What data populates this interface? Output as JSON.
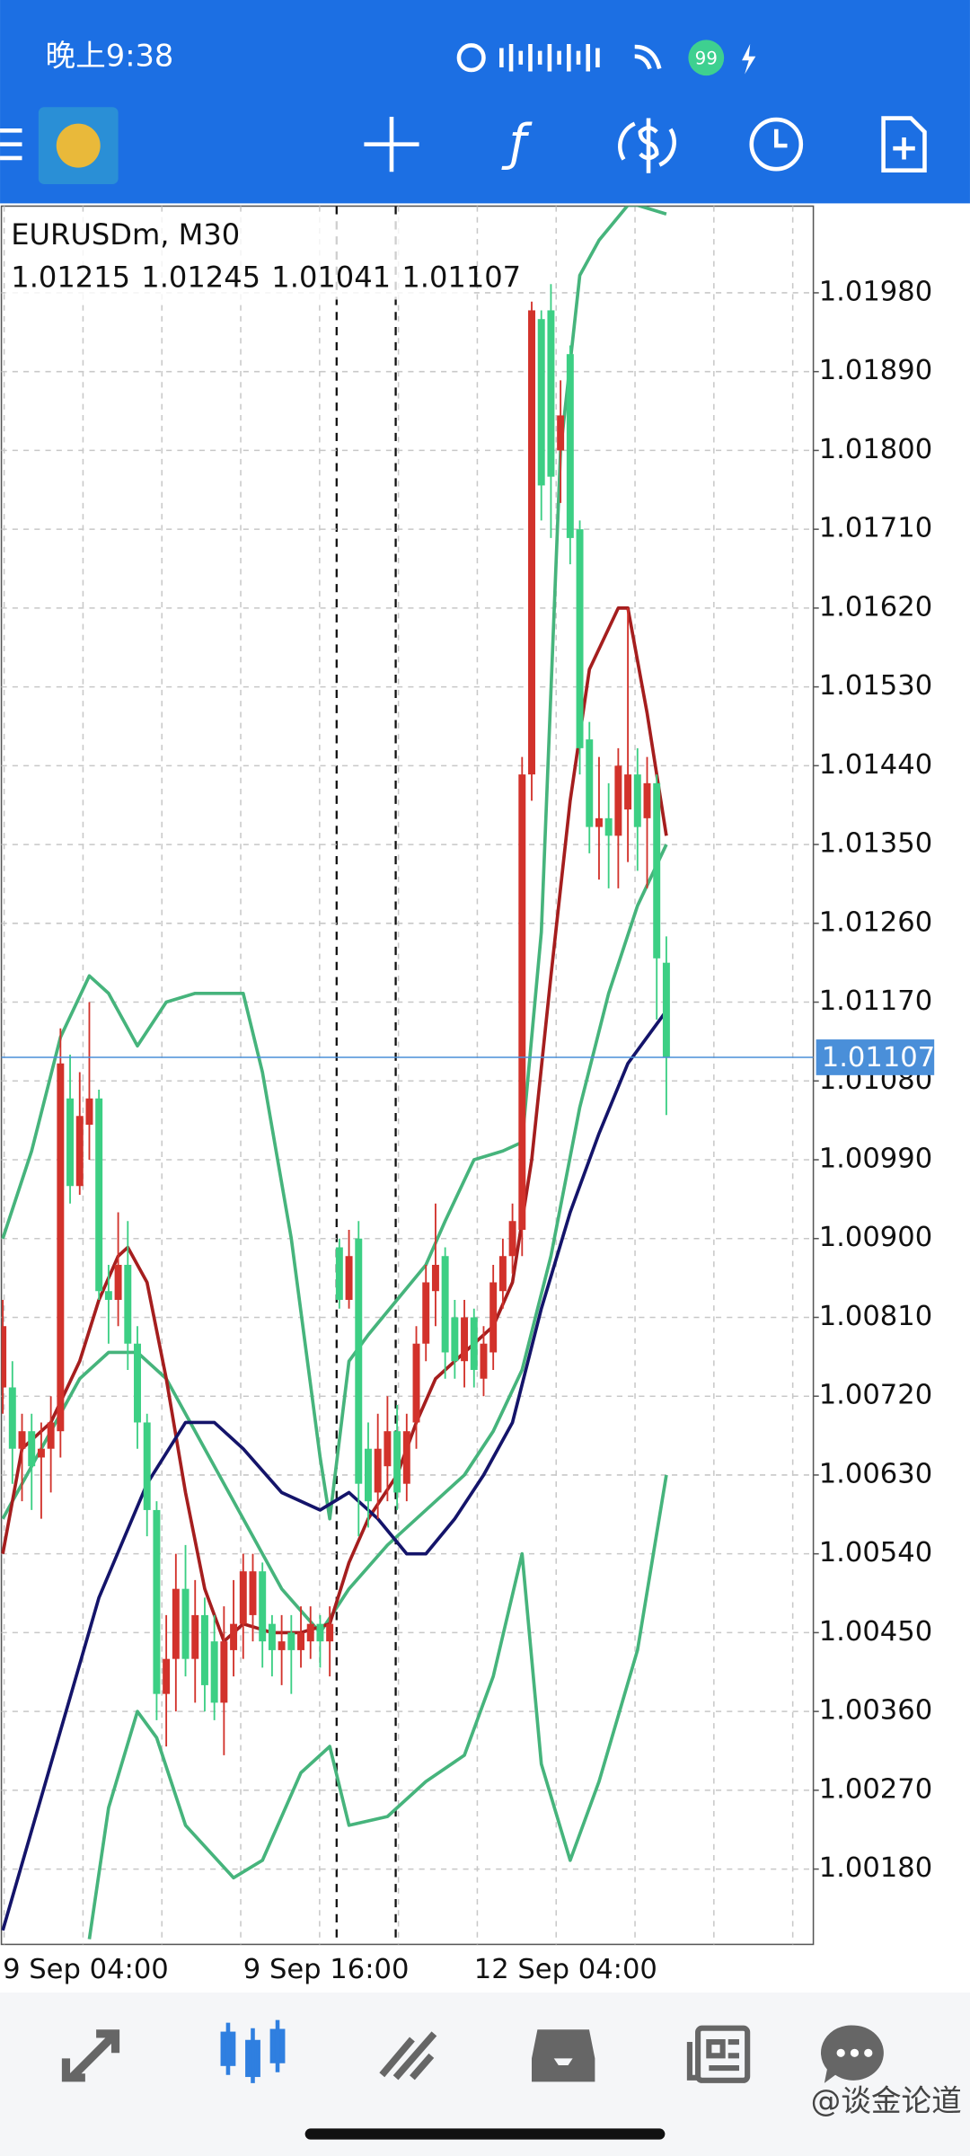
{
  "status_bar": {
    "time": "晚上9:38",
    "battery": "99"
  },
  "watermark": "@谈金论道",
  "chart_data": {
    "type": "candlestick",
    "symbol": "EURUSDm, M30",
    "categories": [
      "9 Sep 04:00",
      null,
      null,
      null,
      null,
      null,
      null,
      null,
      null,
      null,
      null,
      null,
      null,
      null,
      null,
      null,
      null,
      null,
      null,
      null,
      null,
      null,
      null,
      null,
      null,
      "9 Sep 16:00",
      null,
      null,
      null,
      null,
      null,
      null,
      null,
      null,
      null,
      null,
      null,
      null,
      null,
      null,
      null,
      null,
      null,
      null,
      null,
      null,
      null,
      null,
      null,
      "12 Sep 04:00",
      null,
      null,
      null,
      null,
      null,
      null,
      null,
      null,
      null,
      null,
      null,
      null,
      null,
      null,
      null,
      null,
      null,
      null,
      null,
      null
    ],
    "open": [
      1.0073,
      1.0073,
      1.0066,
      1.0068,
      1.0065,
      1.0066,
      1.0068,
      1.0106,
      1.0096,
      1.0103,
      1.0106,
      1.0084,
      1.0083,
      1.0087,
      1.0078,
      1.0069,
      1.0059,
      1.0038,
      1.0042,
      1.005,
      1.0042,
      1.0047,
      1.0044,
      1.0037,
      1.0043,
      1.0046,
      1.0047,
      1.0052,
      1.0046,
      1.0043,
      1.0045,
      1.0043,
      1.0044,
      1.0046,
      1.0044,
      1.0089,
      1.0083,
      1.009,
      1.0066,
      1.0061,
      1.0064,
      1.0068,
      1.0062,
      1.0069,
      1.0078,
      1.0084,
      1.0088,
      1.0081,
      1.0076,
      1.0081,
      1.0074,
      1.0077,
      1.0084,
      1.0088,
      1.0091,
      1.0143,
      1.0195,
      1.0196,
      1.018,
      1.0191,
      1.0171,
      1.0147,
      1.0137,
      1.0138,
      1.0136,
      1.0139,
      1.0143,
      1.0138,
      1.0142,
      1.01215
    ],
    "high": [
      1.0083,
      1.0076,
      1.007,
      1.007,
      1.0069,
      1.0072,
      1.0114,
      1.0111,
      1.0109,
      1.0117,
      1.0107,
      1.0087,
      1.0093,
      1.0092,
      1.008,
      1.007,
      1.006,
      1.0047,
      1.0054,
      1.0055,
      1.0051,
      1.0049,
      1.0047,
      1.0048,
      1.0051,
      1.0054,
      1.0054,
      1.0053,
      1.0047,
      1.0047,
      1.0047,
      1.0048,
      1.0048,
      1.0047,
      1.0048,
      1.009,
      1.0091,
      1.0092,
      1.0069,
      1.007,
      1.0072,
      1.0071,
      1.007,
      1.008,
      1.0087,
      1.0094,
      1.0089,
      1.0083,
      1.0083,
      1.0082,
      1.008,
      1.0087,
      1.009,
      1.0094,
      1.0145,
      1.0197,
      1.0196,
      1.0199,
      1.0188,
      1.0192,
      1.0172,
      1.0149,
      1.0145,
      1.0142,
      1.0146,
      1.0162,
      1.0146,
      1.0145,
      1.0143,
      1.01245
    ],
    "low": [
      1.007,
      1.0062,
      1.006,
      1.0059,
      1.0058,
      1.0061,
      1.0065,
      1.0094,
      1.0095,
      1.0099,
      1.0083,
      1.0078,
      1.008,
      1.0075,
      1.0066,
      1.0056,
      1.0035,
      1.0032,
      1.0036,
      1.004,
      1.0037,
      1.0036,
      1.0035,
      1.0031,
      1.004,
      1.0042,
      1.0044,
      1.0041,
      1.004,
      1.0039,
      1.0038,
      1.0041,
      1.0042,
      1.0041,
      1.004,
      1.0082,
      1.0082,
      1.0056,
      1.0057,
      1.0058,
      1.006,
      1.0059,
      1.006,
      1.0066,
      1.0076,
      1.008,
      1.0074,
      1.0074,
      1.0073,
      1.0073,
      1.0072,
      1.0075,
      1.0082,
      1.0086,
      1.0088,
      1.014,
      1.0172,
      1.017,
      1.0174,
      1.0167,
      1.0143,
      1.0134,
      1.0131,
      1.013,
      1.013,
      1.0133,
      1.0132,
      1.013,
      1.0115,
      1.01041
    ],
    "close": [
      1.008,
      1.0066,
      1.0068,
      1.0064,
      1.0066,
      1.0069,
      1.011,
      1.0096,
      1.0104,
      1.0106,
      1.0084,
      1.0083,
      1.0087,
      1.0078,
      1.0069,
      1.0059,
      1.0038,
      1.0042,
      1.005,
      1.0042,
      1.0047,
      1.0039,
      1.0037,
      1.0044,
      1.0046,
      1.0052,
      1.0052,
      1.0044,
      1.0043,
      1.0044,
      1.0043,
      1.0045,
      1.0046,
      1.0044,
      1.0046,
      1.0083,
      1.0088,
      1.0062,
      1.006,
      1.0066,
      1.0068,
      1.0061,
      1.0068,
      1.0078,
      1.0085,
      1.0087,
      1.0077,
      1.0076,
      1.0081,
      1.0075,
      1.0078,
      1.0085,
      1.0088,
      1.0092,
      1.0143,
      1.0196,
      1.0176,
      1.0177,
      1.0184,
      1.017,
      1.0146,
      1.0137,
      1.0138,
      1.0136,
      1.0144,
      1.0143,
      1.0137,
      1.0142,
      1.0122,
      1.01107
    ],
    "up_color": "#d2322b",
    "down_color": "#3ccf84",
    "series": [
      {
        "color": "#46b47c",
        "x": [
          0,
          3,
          6,
          9,
          11,
          14,
          17,
          20,
          25,
          27,
          30,
          33,
          34,
          36,
          38,
          41,
          44,
          46,
          49,
          52,
          54,
          56,
          58,
          60,
          62,
          65,
          66,
          69
        ],
        "values": [
          1.009,
          1.01,
          1.0113,
          1.012,
          1.0118,
          1.0112,
          1.0117,
          1.0118,
          1.0118,
          1.0109,
          1.009,
          1.0065,
          1.0058,
          1.0076,
          1.0079,
          1.0083,
          1.0087,
          1.0092,
          1.0099,
          1.01,
          1.0101,
          1.0125,
          1.018,
          1.02,
          1.0204,
          1.0208,
          1.0208,
          1.0207
        ]
      },
      {
        "color": "#46b47c",
        "x": [
          0,
          4,
          8,
          11,
          14,
          17,
          21,
          25,
          29,
          33,
          36,
          40,
          44,
          48,
          51,
          54,
          57,
          60,
          63,
          66,
          69
        ],
        "values": [
          1.0058,
          1.0066,
          1.0074,
          1.0077,
          1.0077,
          1.0074,
          1.0066,
          1.0058,
          1.005,
          1.0045,
          1.005,
          1.0055,
          1.0059,
          1.0063,
          1.0068,
          1.0075,
          1.0088,
          1.0105,
          1.0118,
          1.0128,
          1.0135
        ]
      },
      {
        "color": "#46b47c",
        "x": [
          9,
          11,
          14,
          16,
          19,
          24,
          27,
          31,
          34,
          36,
          40,
          44,
          48,
          51,
          54,
          56,
          59,
          62,
          66,
          69
        ],
        "values": [
          1.001,
          1.0025,
          1.0036,
          1.0033,
          1.0023,
          1.0017,
          1.0019,
          1.0029,
          1.0032,
          1.0023,
          1.0024,
          1.0028,
          1.0031,
          1.004,
          1.0054,
          1.003,
          1.0019,
          1.0028,
          1.0043,
          1.0063
        ]
      },
      {
        "color": "#a51e1e",
        "x": [
          0,
          2,
          5,
          8,
          10,
          12,
          13,
          15,
          17,
          19,
          21,
          23,
          25,
          28,
          31,
          34,
          36,
          38,
          41,
          43,
          45,
          48,
          51,
          53,
          55,
          57,
          59,
          61,
          64,
          65,
          67,
          69
        ],
        "values": [
          1.0054,
          1.0066,
          1.0069,
          1.0076,
          1.0083,
          1.0088,
          1.0089,
          1.0085,
          1.0074,
          1.0061,
          1.005,
          1.0044,
          1.0046,
          1.0045,
          1.0045,
          1.0046,
          1.0053,
          1.0058,
          1.0063,
          1.0069,
          1.0074,
          1.0077,
          1.008,
          1.0085,
          1.0099,
          1.012,
          1.014,
          1.0155,
          1.0162,
          1.0162,
          1.015,
          1.0136
        ]
      },
      {
        "color": "#14146a",
        "x": [
          0,
          5,
          10,
          15,
          19,
          22,
          25,
          29,
          33,
          36,
          39,
          42,
          44,
          47,
          50,
          53,
          56,
          59,
          62,
          65,
          69
        ],
        "values": [
          1.0011,
          1.003,
          1.0049,
          1.0062,
          1.0069,
          1.0069,
          1.0066,
          1.0061,
          1.0059,
          1.0061,
          1.0058,
          1.0054,
          1.0054,
          1.0058,
          1.0063,
          1.0069,
          1.0082,
          1.0093,
          1.0102,
          1.011,
          1.0116
        ]
      }
    ],
    "bid_color": "#4a8fd9",
    "ylim": [
      1.00094,
      1.02079
    ],
    "yticks": [
      {
        "value": 1.0198,
        "label": "1.01980"
      },
      {
        "value": 1.0189,
        "label": "1.01890"
      },
      {
        "value": 1.018,
        "label": "1.01800"
      },
      {
        "value": 1.0171,
        "label": "1.01710"
      },
      {
        "value": 1.0162,
        "label": "1.01620"
      },
      {
        "value": 1.0153,
        "label": "1.01530"
      },
      {
        "value": 1.0144,
        "label": "1.01440"
      },
      {
        "value": 1.0135,
        "label": "1.01350"
      },
      {
        "value": 1.0126,
        "label": "1.01260"
      },
      {
        "value": 1.0117,
        "label": "1.01170"
      },
      {
        "value": 1.0108,
        "label": "1.01080"
      },
      {
        "value": 1.0099,
        "label": "1.00990"
      },
      {
        "value": 1.009,
        "label": "1.00900"
      },
      {
        "value": 1.0081,
        "label": "1.00810"
      },
      {
        "value": 1.0072,
        "label": "1.00720"
      },
      {
        "value": 1.0063,
        "label": "1.00630"
      },
      {
        "value": 1.0054,
        "label": "1.00540"
      },
      {
        "value": 1.0045,
        "label": "1.00450"
      },
      {
        "value": 1.0036,
        "label": "1.00360"
      },
      {
        "value": 1.0027,
        "label": "1.00270"
      },
      {
        "value": 1.0018,
        "label": "1.00180"
      }
    ],
    "grid": true
  }
}
